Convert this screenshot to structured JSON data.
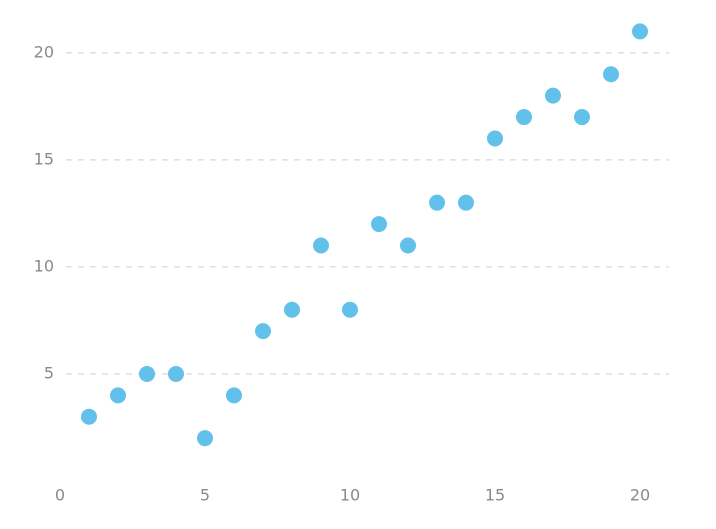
{
  "chart_data": {
    "type": "scatter",
    "x": [
      1,
      2,
      3,
      4,
      5,
      6,
      7,
      8,
      9,
      10,
      11,
      12,
      13,
      14,
      15,
      16,
      17,
      18,
      19,
      20
    ],
    "series": [
      {
        "color": "#62c1ea",
        "values": [
          3,
          4,
          5,
          5,
          2,
          4,
          7,
          8,
          11,
          8,
          12,
          11,
          13,
          13,
          16,
          17,
          18,
          17,
          19,
          21
        ]
      }
    ],
    "xlim": [
      0,
      21
    ],
    "ylim": [
      0,
      22
    ],
    "xticks": [
      0,
      5,
      10,
      15,
      20
    ],
    "yticks": [
      5,
      10,
      15,
      20
    ],
    "grid": true
  }
}
